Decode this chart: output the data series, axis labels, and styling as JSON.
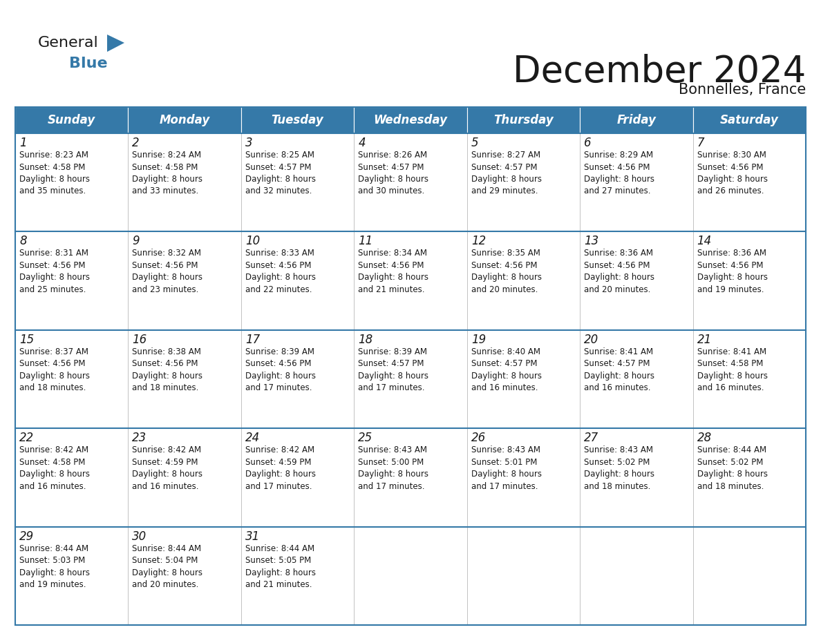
{
  "title": "December 2024",
  "subtitle": "Bonnelles, France",
  "header_color": "#3579a8",
  "header_text_color": "#ffffff",
  "cell_bg_color": "#ffffff",
  "grid_line_color": "#3579a8",
  "text_color": "#1a1a1a",
  "day_headers": [
    "Sunday",
    "Monday",
    "Tuesday",
    "Wednesday",
    "Thursday",
    "Friday",
    "Saturday"
  ],
  "title_fontsize": 38,
  "subtitle_fontsize": 15,
  "header_fontsize": 12,
  "day_num_fontsize": 12,
  "cell_fontsize": 8.5,
  "logo_general_color": "#1a1a1a",
  "logo_blue_color": "#3579a8",
  "logo_triangle_color": "#3579a8",
  "weeks": [
    [
      {
        "day": 1,
        "sunrise": "8:23 AM",
        "sunset": "4:58 PM",
        "daylight_hours": 8,
        "daylight_minutes": 35
      },
      {
        "day": 2,
        "sunrise": "8:24 AM",
        "sunset": "4:58 PM",
        "daylight_hours": 8,
        "daylight_minutes": 33
      },
      {
        "day": 3,
        "sunrise": "8:25 AM",
        "sunset": "4:57 PM",
        "daylight_hours": 8,
        "daylight_minutes": 32
      },
      {
        "day": 4,
        "sunrise": "8:26 AM",
        "sunset": "4:57 PM",
        "daylight_hours": 8,
        "daylight_minutes": 30
      },
      {
        "day": 5,
        "sunrise": "8:27 AM",
        "sunset": "4:57 PM",
        "daylight_hours": 8,
        "daylight_minutes": 29
      },
      {
        "day": 6,
        "sunrise": "8:29 AM",
        "sunset": "4:56 PM",
        "daylight_hours": 8,
        "daylight_minutes": 27
      },
      {
        "day": 7,
        "sunrise": "8:30 AM",
        "sunset": "4:56 PM",
        "daylight_hours": 8,
        "daylight_minutes": 26
      }
    ],
    [
      {
        "day": 8,
        "sunrise": "8:31 AM",
        "sunset": "4:56 PM",
        "daylight_hours": 8,
        "daylight_minutes": 25
      },
      {
        "day": 9,
        "sunrise": "8:32 AM",
        "sunset": "4:56 PM",
        "daylight_hours": 8,
        "daylight_minutes": 23
      },
      {
        "day": 10,
        "sunrise": "8:33 AM",
        "sunset": "4:56 PM",
        "daylight_hours": 8,
        "daylight_minutes": 22
      },
      {
        "day": 11,
        "sunrise": "8:34 AM",
        "sunset": "4:56 PM",
        "daylight_hours": 8,
        "daylight_minutes": 21
      },
      {
        "day": 12,
        "sunrise": "8:35 AM",
        "sunset": "4:56 PM",
        "daylight_hours": 8,
        "daylight_minutes": 20
      },
      {
        "day": 13,
        "sunrise": "8:36 AM",
        "sunset": "4:56 PM",
        "daylight_hours": 8,
        "daylight_minutes": 20
      },
      {
        "day": 14,
        "sunrise": "8:36 AM",
        "sunset": "4:56 PM",
        "daylight_hours": 8,
        "daylight_minutes": 19
      }
    ],
    [
      {
        "day": 15,
        "sunrise": "8:37 AM",
        "sunset": "4:56 PM",
        "daylight_hours": 8,
        "daylight_minutes": 18
      },
      {
        "day": 16,
        "sunrise": "8:38 AM",
        "sunset": "4:56 PM",
        "daylight_hours": 8,
        "daylight_minutes": 18
      },
      {
        "day": 17,
        "sunrise": "8:39 AM",
        "sunset": "4:56 PM",
        "daylight_hours": 8,
        "daylight_minutes": 17
      },
      {
        "day": 18,
        "sunrise": "8:39 AM",
        "sunset": "4:57 PM",
        "daylight_hours": 8,
        "daylight_minutes": 17
      },
      {
        "day": 19,
        "sunrise": "8:40 AM",
        "sunset": "4:57 PM",
        "daylight_hours": 8,
        "daylight_minutes": 16
      },
      {
        "day": 20,
        "sunrise": "8:41 AM",
        "sunset": "4:57 PM",
        "daylight_hours": 8,
        "daylight_minutes": 16
      },
      {
        "day": 21,
        "sunrise": "8:41 AM",
        "sunset": "4:58 PM",
        "daylight_hours": 8,
        "daylight_minutes": 16
      }
    ],
    [
      {
        "day": 22,
        "sunrise": "8:42 AM",
        "sunset": "4:58 PM",
        "daylight_hours": 8,
        "daylight_minutes": 16
      },
      {
        "day": 23,
        "sunrise": "8:42 AM",
        "sunset": "4:59 PM",
        "daylight_hours": 8,
        "daylight_minutes": 16
      },
      {
        "day": 24,
        "sunrise": "8:42 AM",
        "sunset": "4:59 PM",
        "daylight_hours": 8,
        "daylight_minutes": 17
      },
      {
        "day": 25,
        "sunrise": "8:43 AM",
        "sunset": "5:00 PM",
        "daylight_hours": 8,
        "daylight_minutes": 17
      },
      {
        "day": 26,
        "sunrise": "8:43 AM",
        "sunset": "5:01 PM",
        "daylight_hours": 8,
        "daylight_minutes": 17
      },
      {
        "day": 27,
        "sunrise": "8:43 AM",
        "sunset": "5:02 PM",
        "daylight_hours": 8,
        "daylight_minutes": 18
      },
      {
        "day": 28,
        "sunrise": "8:44 AM",
        "sunset": "5:02 PM",
        "daylight_hours": 8,
        "daylight_minutes": 18
      }
    ],
    [
      {
        "day": 29,
        "sunrise": "8:44 AM",
        "sunset": "5:03 PM",
        "daylight_hours": 8,
        "daylight_minutes": 19
      },
      {
        "day": 30,
        "sunrise": "8:44 AM",
        "sunset": "5:04 PM",
        "daylight_hours": 8,
        "daylight_minutes": 20
      },
      {
        "day": 31,
        "sunrise": "8:44 AM",
        "sunset": "5:05 PM",
        "daylight_hours": 8,
        "daylight_minutes": 21
      },
      null,
      null,
      null,
      null
    ]
  ]
}
